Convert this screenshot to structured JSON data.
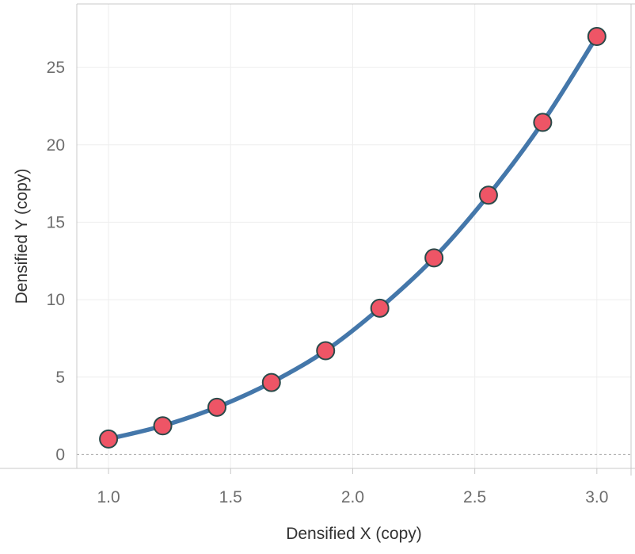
{
  "chart_data": {
    "type": "line",
    "xlabel": "Densified X (copy)",
    "ylabel": "Densified Y (copy)",
    "xlim": [
      0.87,
      3.14
    ],
    "ylim": [
      -0.9,
      29.1
    ],
    "xticks": [
      "1.0",
      "1.5",
      "2.0",
      "2.5",
      "3.0"
    ],
    "xtick_values": [
      1.0,
      1.5,
      2.0,
      2.5,
      3.0
    ],
    "yticks": [
      "0",
      "5",
      "10",
      "15",
      "20",
      "25"
    ],
    "ytick_values": [
      0,
      5,
      10,
      15,
      20,
      25
    ],
    "grid": true,
    "zero_line": true,
    "points": [
      {
        "x": 1.0,
        "y": 1.0
      },
      {
        "x": 1.222,
        "y": 1.85
      },
      {
        "x": 1.444,
        "y": 3.05
      },
      {
        "x": 1.667,
        "y": 4.65
      },
      {
        "x": 1.889,
        "y": 6.7
      },
      {
        "x": 2.111,
        "y": 9.45
      },
      {
        "x": 2.333,
        "y": 12.7
      },
      {
        "x": 2.556,
        "y": 16.75
      },
      {
        "x": 2.778,
        "y": 21.45
      },
      {
        "x": 3.0,
        "y": 27.0
      }
    ],
    "colors": {
      "line": "#4477aa",
      "marker_fill": "#ee5566",
      "marker_stroke": "#2a4a4a",
      "grid": "#eeeeee",
      "axis": "#c8c8c8",
      "tick_text": "#6e6e6e",
      "label_text": "#333333"
    }
  }
}
